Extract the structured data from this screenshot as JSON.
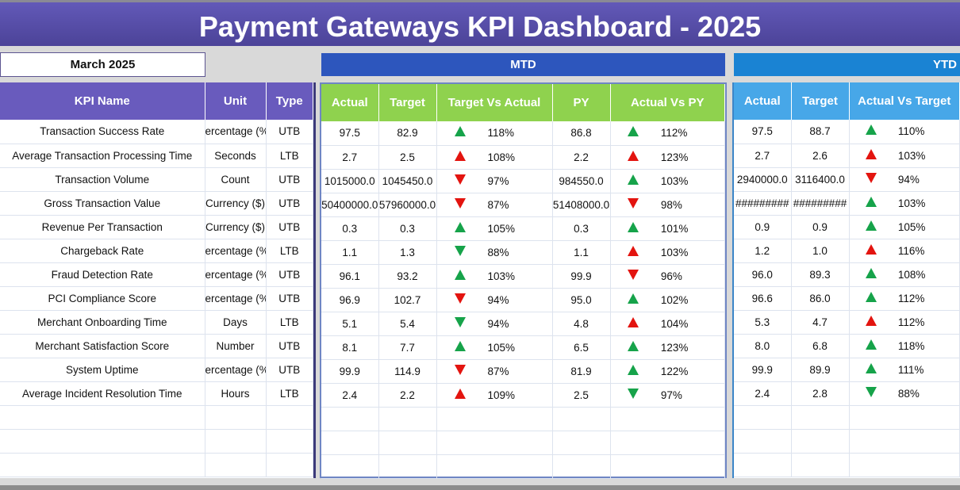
{
  "title": "Payment Gateways KPI Dashboard - 2025",
  "selected_month": "March 2025",
  "sections": {
    "mtd": "MTD",
    "ytd": "YTD"
  },
  "colors": {
    "green": "#16a34a",
    "red": "#e3140f"
  },
  "headers": {
    "kpi": [
      "KPI Name",
      "Unit",
      "Type"
    ],
    "mtd": [
      "Actual",
      "Target",
      "Target Vs Actual",
      "PY",
      "Actual Vs PY"
    ],
    "ytd": [
      "Actual",
      "Target",
      "Actual Vs Target"
    ]
  },
  "rows": [
    {
      "name": "Transaction Success Rate",
      "unit": "ercentage (%",
      "type": "UTB",
      "mtd_actual": "97.5",
      "mtd_target": "82.9",
      "tva": {
        "dir": "up",
        "color": "green",
        "pct": "118%"
      },
      "py": "86.8",
      "avpy": {
        "dir": "up",
        "color": "green",
        "pct": "112%"
      },
      "ytd_actual": "97.5",
      "ytd_target": "88.7",
      "avt": {
        "dir": "up",
        "color": "green",
        "pct": "110%"
      }
    },
    {
      "name": "Average Transaction Processing Time",
      "unit": "Seconds",
      "type": "LTB",
      "mtd_actual": "2.7",
      "mtd_target": "2.5",
      "tva": {
        "dir": "up",
        "color": "red",
        "pct": "108%"
      },
      "py": "2.2",
      "avpy": {
        "dir": "up",
        "color": "red",
        "pct": "123%"
      },
      "ytd_actual": "2.7",
      "ytd_target": "2.6",
      "avt": {
        "dir": "up",
        "color": "red",
        "pct": "103%"
      }
    },
    {
      "name": "Transaction Volume",
      "unit": "Count",
      "type": "UTB",
      "mtd_actual": "1015000.0",
      "mtd_target": "1045450.0",
      "tva": {
        "dir": "down",
        "color": "red",
        "pct": "97%"
      },
      "py": "984550.0",
      "avpy": {
        "dir": "up",
        "color": "green",
        "pct": "103%"
      },
      "ytd_actual": "2940000.0",
      "ytd_target": "3116400.0",
      "avt": {
        "dir": "down",
        "color": "red",
        "pct": "94%"
      }
    },
    {
      "name": "Gross Transaction Value",
      "unit": "Currency ($)",
      "type": "UTB",
      "mtd_actual": "50400000.0",
      "mtd_target": "57960000.0",
      "tva": {
        "dir": "down",
        "color": "red",
        "pct": "87%"
      },
      "py": "51408000.0",
      "avpy": {
        "dir": "down",
        "color": "red",
        "pct": "98%"
      },
      "ytd_actual": "#########",
      "ytd_target": "#########",
      "avt": {
        "dir": "up",
        "color": "green",
        "pct": "103%"
      }
    },
    {
      "name": "Revenue Per Transaction",
      "unit": "Currency ($)",
      "type": "UTB",
      "mtd_actual": "0.3",
      "mtd_target": "0.3",
      "tva": {
        "dir": "up",
        "color": "green",
        "pct": "105%"
      },
      "py": "0.3",
      "avpy": {
        "dir": "up",
        "color": "green",
        "pct": "101%"
      },
      "ytd_actual": "0.9",
      "ytd_target": "0.9",
      "avt": {
        "dir": "up",
        "color": "green",
        "pct": "105%"
      }
    },
    {
      "name": "Chargeback Rate",
      "unit": "ercentage (%",
      "type": "LTB",
      "mtd_actual": "1.1",
      "mtd_target": "1.3",
      "tva": {
        "dir": "down",
        "color": "green",
        "pct": "88%"
      },
      "py": "1.1",
      "avpy": {
        "dir": "up",
        "color": "red",
        "pct": "103%"
      },
      "ytd_actual": "1.2",
      "ytd_target": "1.0",
      "avt": {
        "dir": "up",
        "color": "red",
        "pct": "116%"
      }
    },
    {
      "name": "Fraud Detection Rate",
      "unit": "ercentage (%",
      "type": "UTB",
      "mtd_actual": "96.1",
      "mtd_target": "93.2",
      "tva": {
        "dir": "up",
        "color": "green",
        "pct": "103%"
      },
      "py": "99.9",
      "avpy": {
        "dir": "down",
        "color": "red",
        "pct": "96%"
      },
      "ytd_actual": "96.0",
      "ytd_target": "89.3",
      "avt": {
        "dir": "up",
        "color": "green",
        "pct": "108%"
      }
    },
    {
      "name": "PCI Compliance Score",
      "unit": "ercentage (%",
      "type": "UTB",
      "mtd_actual": "96.9",
      "mtd_target": "102.7",
      "tva": {
        "dir": "down",
        "color": "red",
        "pct": "94%"
      },
      "py": "95.0",
      "avpy": {
        "dir": "up",
        "color": "green",
        "pct": "102%"
      },
      "ytd_actual": "96.6",
      "ytd_target": "86.0",
      "avt": {
        "dir": "up",
        "color": "green",
        "pct": "112%"
      }
    },
    {
      "name": "Merchant Onboarding Time",
      "unit": "Days",
      "type": "LTB",
      "mtd_actual": "5.1",
      "mtd_target": "5.4",
      "tva": {
        "dir": "down",
        "color": "green",
        "pct": "94%"
      },
      "py": "4.8",
      "avpy": {
        "dir": "up",
        "color": "red",
        "pct": "104%"
      },
      "ytd_actual": "5.3",
      "ytd_target": "4.7",
      "avt": {
        "dir": "up",
        "color": "red",
        "pct": "112%"
      }
    },
    {
      "name": "Merchant Satisfaction Score",
      "unit": "Number",
      "type": "UTB",
      "mtd_actual": "8.1",
      "mtd_target": "7.7",
      "tva": {
        "dir": "up",
        "color": "green",
        "pct": "105%"
      },
      "py": "6.5",
      "avpy": {
        "dir": "up",
        "color": "green",
        "pct": "123%"
      },
      "ytd_actual": "8.0",
      "ytd_target": "6.8",
      "avt": {
        "dir": "up",
        "color": "green",
        "pct": "118%"
      }
    },
    {
      "name": "System Uptime",
      "unit": "ercentage (%",
      "type": "UTB",
      "mtd_actual": "99.9",
      "mtd_target": "114.9",
      "tva": {
        "dir": "down",
        "color": "red",
        "pct": "87%"
      },
      "py": "81.9",
      "avpy": {
        "dir": "up",
        "color": "green",
        "pct": "122%"
      },
      "ytd_actual": "99.9",
      "ytd_target": "89.9",
      "avt": {
        "dir": "up",
        "color": "green",
        "pct": "111%"
      }
    },
    {
      "name": "Average Incident Resolution Time",
      "unit": "Hours",
      "type": "LTB",
      "mtd_actual": "2.4",
      "mtd_target": "2.2",
      "tva": {
        "dir": "up",
        "color": "red",
        "pct": "109%"
      },
      "py": "2.5",
      "avpy": {
        "dir": "down",
        "color": "green",
        "pct": "97%"
      },
      "ytd_actual": "2.4",
      "ytd_target": "2.8",
      "avt": {
        "dir": "down",
        "color": "green",
        "pct": "88%"
      }
    }
  ]
}
